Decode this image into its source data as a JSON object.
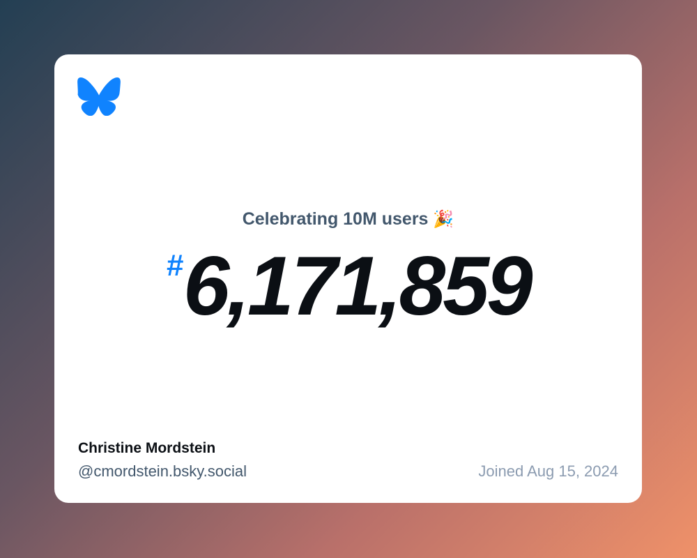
{
  "card": {
    "logo": "bluesky-butterfly-icon",
    "headline": "Celebrating 10M users",
    "headline_emoji": "🎉",
    "hash": "#",
    "user_number": "6,171,859",
    "display_name": "Christine Mordstein",
    "handle": "@cmordstein.bsky.social",
    "joined": "Joined Aug 15, 2024"
  },
  "colors": {
    "accent": "#1083fe",
    "text": "#0b0f14",
    "muted": "#42576c",
    "subtle": "#8b9bb0"
  }
}
